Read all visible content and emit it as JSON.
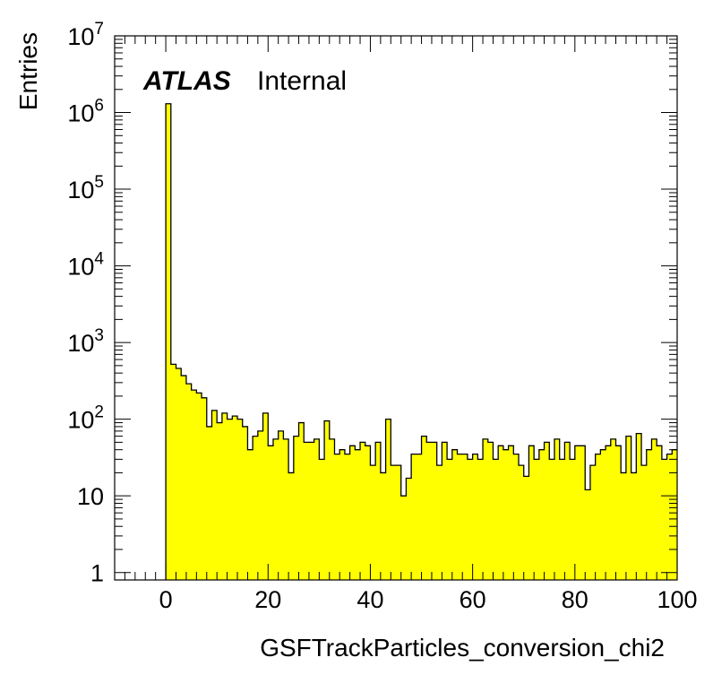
{
  "chart_data": {
    "type": "bar",
    "xlabel": "GSFTrackParticles_conversion_chi2",
    "ylabel": "Entries",
    "xlim": [
      -10,
      100
    ],
    "ylim": [
      0.8,
      10000000
    ],
    "y_scale": "log",
    "x_ticks": [
      "0",
      "20",
      "40",
      "60",
      "80",
      "100"
    ],
    "y_ticks": [
      {
        "base": "1",
        "exp": ""
      },
      {
        "base": "10",
        "exp": ""
      },
      {
        "base": "10",
        "exp": "2"
      },
      {
        "base": "10",
        "exp": "3"
      },
      {
        "base": "10",
        "exp": "4"
      },
      {
        "base": "10",
        "exp": "5"
      },
      {
        "base": "10",
        "exp": "6"
      },
      {
        "base": "10",
        "exp": "7"
      }
    ],
    "fill_color": "#ffff00",
    "line_color": "#000000",
    "bin_width": 1,
    "bin_start": 0,
    "values": [
      1300000,
      520,
      460,
      370,
      290,
      240,
      220,
      190,
      80,
      130,
      90,
      120,
      100,
      110,
      100,
      80,
      40,
      60,
      70,
      120,
      45,
      55,
      70,
      55,
      20,
      60,
      90,
      50,
      50,
      55,
      30,
      95,
      55,
      35,
      40,
      35,
      45,
      40,
      50,
      45,
      25,
      50,
      20,
      100,
      25,
      25,
      10,
      17,
      35,
      35,
      60,
      50,
      50,
      25,
      50,
      30,
      40,
      35,
      35,
      30,
      35,
      30,
      55,
      50,
      30,
      45,
      40,
      45,
      35,
      25,
      18,
      45,
      30,
      40,
      50,
      30,
      55,
      30,
      50,
      30,
      45,
      45,
      12,
      25,
      35,
      40,
      45,
      55,
      45,
      20,
      60,
      20,
      65,
      25,
      40,
      55,
      45,
      30,
      35,
      40
    ],
    "annotations": [
      {
        "bold": "ATLAS",
        "text": "Internal"
      }
    ]
  }
}
